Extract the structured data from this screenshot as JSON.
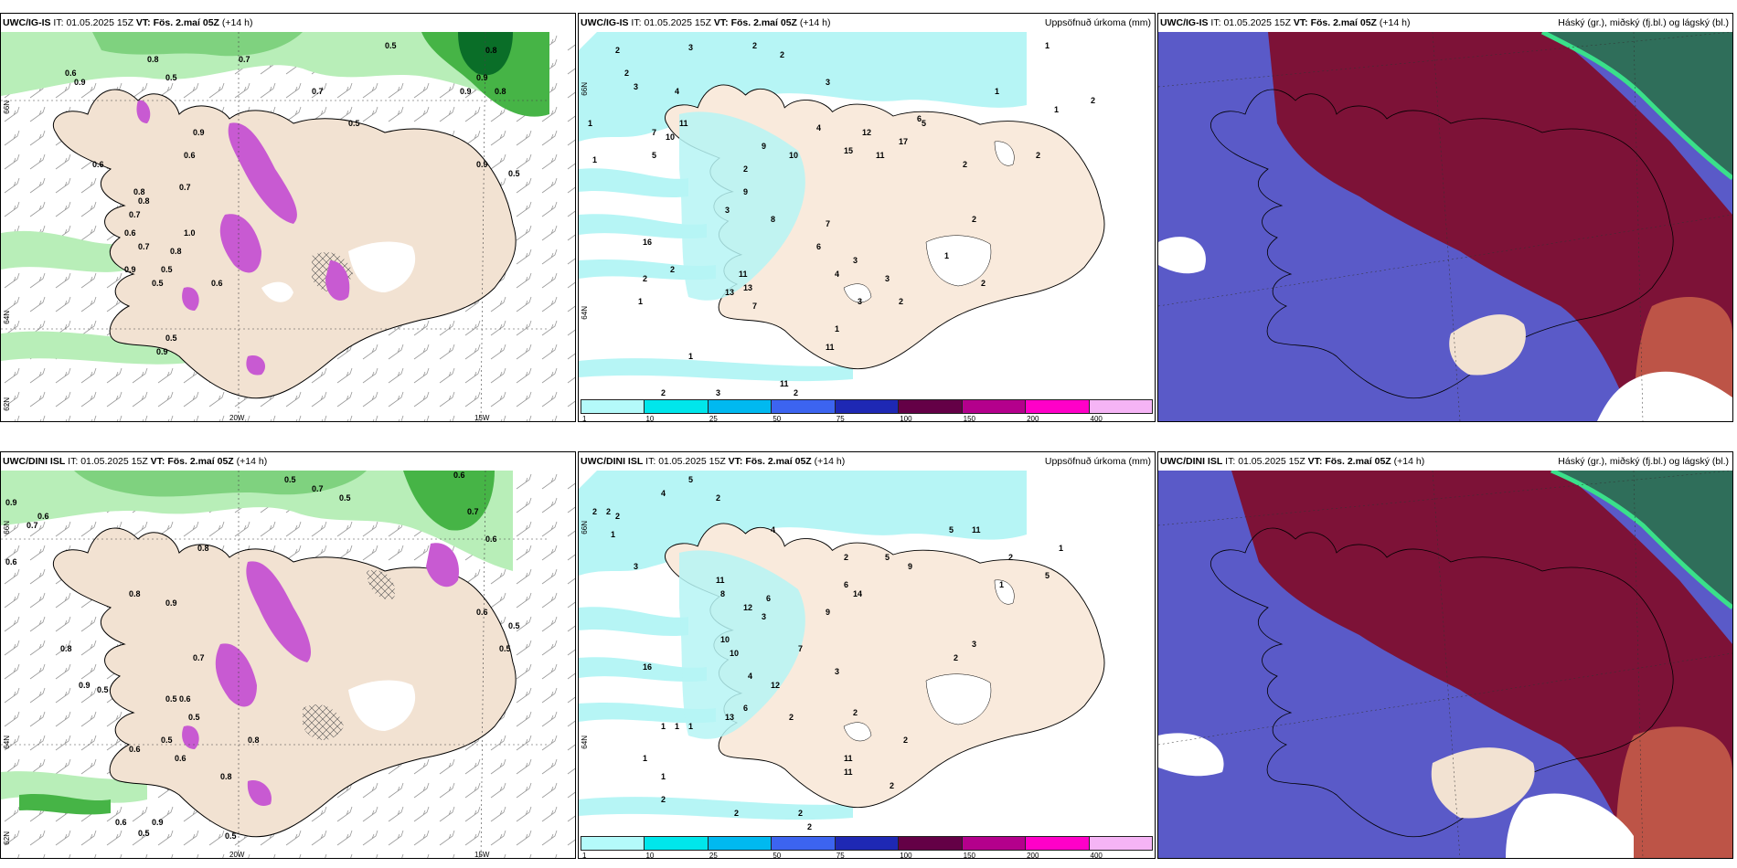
{
  "panels": {
    "top_left": {
      "source": "UWC/IG-IS",
      "it_label": "IT:",
      "it_value": "01.05.2025 15Z",
      "vt_label": "VT: Fös. 2.maí 05Z",
      "lead": "(+14 h)",
      "lon_labels": [
        "20W",
        "15W"
      ],
      "lat_labels": [
        "66N",
        "64N",
        "62N"
      ],
      "value_labels": [
        "0.6",
        "0.8",
        "0.7",
        "0.5",
        "0.8",
        "0.9",
        "0.6",
        "0.5",
        "0.9",
        "0.8",
        "0.6",
        "0.9",
        "0.7",
        "0.5",
        "0.8",
        "0.7",
        "0.5",
        "0.6",
        "0.9",
        "0.8",
        "0.7",
        "0.5",
        "0.9",
        "0.7",
        "0.5",
        "0.8",
        "1.0",
        "0.6",
        "0.9",
        "0.5",
        "0.9"
      ]
    },
    "top_middle": {
      "source": "UWC/IG-IS",
      "it_label": "IT:",
      "it_value": "01.05.2025 15Z",
      "vt_label": "VT: Fös. 2.maí 05Z",
      "lead": "(+14 h)",
      "right_title": "Uppsöfnuð úrkoma (mm)",
      "lat_labels": [
        "66N",
        "64N"
      ],
      "value_labels": [
        "2",
        "3",
        "2",
        "2",
        "1",
        "3",
        "4",
        "2",
        "1",
        "7",
        "11",
        "10",
        "5",
        "3",
        "4",
        "9",
        "2",
        "10",
        "15",
        "12",
        "11",
        "17",
        "5",
        "8",
        "3",
        "7",
        "6",
        "9",
        "4",
        "3",
        "13",
        "11",
        "7",
        "3",
        "2",
        "1",
        "2",
        "2",
        "6",
        "16",
        "1",
        "2",
        "1",
        "1",
        "11",
        "13",
        "2",
        "1",
        "2",
        "2",
        "2",
        "1",
        "11",
        "3",
        "2",
        "3",
        "1",
        "2"
      ]
    },
    "top_right": {
      "source": "UWC/IG-IS",
      "it_label": "IT:",
      "it_value": "01.05.2025 15Z",
      "vt_label": "VT: Fös. 2.maí 05Z",
      "lead": "(+14 h)",
      "right_title": "Háský (gr.), miðský (fj.bl.) og lágský (bl.)"
    },
    "bottom_left": {
      "source": "UWC/DINI ISL",
      "it_label": "IT:",
      "it_value": "01.05.2025 15Z",
      "vt_label": "VT: Fös. 2.maí 05Z",
      "lead": "(+14 h)",
      "lon_labels": [
        "20W",
        "15W"
      ],
      "lat_labels": [
        "66N",
        "64N",
        "62N"
      ],
      "value_labels": [
        "0.5",
        "0.7",
        "0.6",
        "0.6",
        "0.9",
        "0.6",
        "0.7",
        "0.5",
        "0.8",
        "0.7",
        "0.6",
        "0.8",
        "0.9",
        "0.5",
        "0.8",
        "0.6",
        "0.7",
        "0.5",
        "0.8",
        "0.9",
        "0.5",
        "0.6",
        "0.5",
        "0.6",
        "0.8",
        "0.5",
        "0.6",
        "0.9",
        "0.5",
        "0.6",
        "0.5",
        "0.5"
      ]
    },
    "bottom_middle": {
      "source": "UWC/DINI ISL",
      "it_label": "IT:",
      "it_value": "01.05.2025 15Z",
      "vt_label": "VT: Fös. 2.maí 05Z",
      "lead": "(+14 h)",
      "right_title": "Uppsöfnuð úrkoma (mm)",
      "lat_labels": [
        "66N",
        "64N"
      ],
      "value_labels": [
        "5",
        "2",
        "4",
        "2",
        "2",
        "3",
        "4",
        "2",
        "1",
        "2",
        "5",
        "6",
        "9",
        "14",
        "11",
        "10",
        "5",
        "3",
        "6",
        "12",
        "8",
        "11",
        "9",
        "7",
        "12",
        "16",
        "3",
        "10",
        "6",
        "2",
        "4",
        "2",
        "11",
        "13",
        "2",
        "1",
        "1",
        "1",
        "11",
        "2",
        "2",
        "1",
        "2",
        "1",
        "2",
        "2",
        "2",
        "3",
        "5",
        "1",
        "2",
        "1"
      ]
    },
    "bottom_right": {
      "source": "UWC/DINI ISL",
      "it_label": "IT:",
      "it_value": "01.05.2025 15Z",
      "vt_label": "VT: Fös. 2.maí 05Z",
      "lead": "(+14 h)",
      "right_title": "Háský (gr.), miðský (fj.bl.) og lágský (bl.)"
    }
  },
  "precip_legend": {
    "labels": [
      "1",
      "10",
      "25",
      "50",
      "75",
      "100",
      "150",
      "200",
      "400"
    ],
    "colors": [
      "#b4fafa",
      "#00e6eb",
      "#00b9f0",
      "#3c64f0",
      "#1e28b4",
      "#640046",
      "#b4008c",
      "#ff00c8",
      "#f5b4f5"
    ]
  },
  "colors": {
    "land": "#f4e6d8",
    "sea_light": "#b6f5f5",
    "cloud_high": "#7d1237",
    "cloud_mid": "#5a5ac8",
    "cloud_low": "#2f6e5a",
    "wind_green_light": "#b8eeb8",
    "wind_green": "#46b446",
    "wind_green_dark": "#0a6e28",
    "magenta": "#c85ad2"
  }
}
